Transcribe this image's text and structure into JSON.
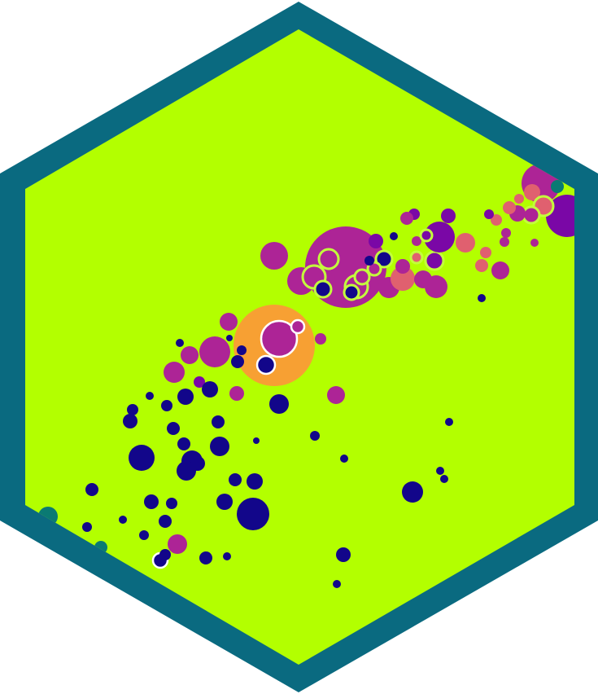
{
  "logo": {
    "shape": "hexagon",
    "colors": {
      "border": "#0a6a80",
      "fill": "#b3ff00",
      "navy": "#12068a",
      "magenta": "#ad2496",
      "purple": "#7a07a6",
      "coral": "#e0606f",
      "orange": "#f7a033",
      "teal": "#0a7a73",
      "outline_light": "#c3ff3c",
      "outline_white": "#ffffff"
    }
  }
}
